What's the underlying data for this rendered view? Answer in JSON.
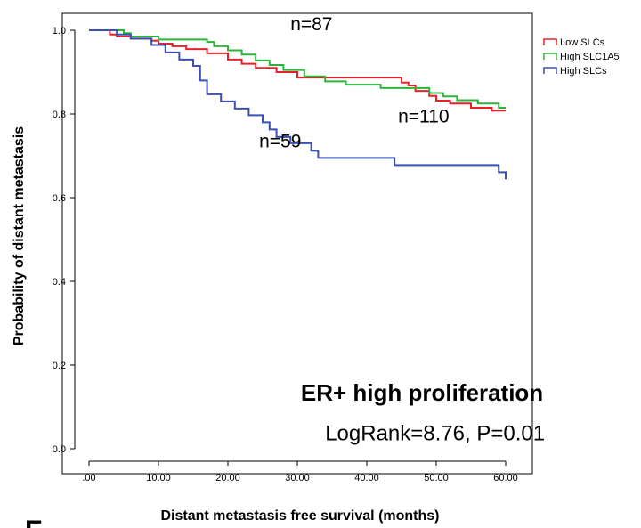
{
  "panel_label": "E",
  "chart_data": {
    "type": "line",
    "step": true,
    "title": "",
    "xlabel": "Distant metastasis free survival (months)",
    "ylabel": "Probability of distant metastasis",
    "xlim": [
      0,
      60
    ],
    "ylim": [
      0,
      1.0
    ],
    "x_ticks": [
      0,
      10,
      20,
      30,
      40,
      50,
      60
    ],
    "x_tick_labels": [
      ".00",
      "10.00",
      "20.00",
      "30.00",
      "40.00",
      "50.00",
      "60.00"
    ],
    "y_ticks": [
      0,
      0.2,
      0.4,
      0.6,
      0.8,
      1.0
    ],
    "y_tick_labels": [
      "0.0",
      "0.2",
      "0.4",
      "0.6",
      "0.8",
      "1.0"
    ],
    "grid": false,
    "legend_position": "top-right",
    "series": [
      {
        "name": "Low SLCs",
        "color": "#e8202a",
        "x": [
          0,
          3,
          4,
          6,
          9,
          10,
          12,
          14,
          17,
          20,
          22,
          24,
          27,
          30,
          35,
          45,
          46,
          47,
          49,
          50,
          52,
          55,
          58,
          60
        ],
        "y": [
          1.0,
          0.99,
          0.985,
          0.98,
          0.975,
          0.968,
          0.962,
          0.955,
          0.945,
          0.93,
          0.92,
          0.91,
          0.9,
          0.887,
          0.887,
          0.875,
          0.868,
          0.855,
          0.843,
          0.832,
          0.825,
          0.815,
          0.808,
          0.808
        ]
      },
      {
        "name": "High SLC1A5",
        "color": "#2cb53a",
        "x": [
          0,
          5,
          6,
          10,
          17,
          18,
          20,
          22,
          24,
          26,
          28,
          31,
          34,
          37,
          42,
          47,
          49,
          51,
          53,
          56,
          59,
          60
        ],
        "y": [
          1.0,
          0.993,
          0.985,
          0.978,
          0.972,
          0.962,
          0.952,
          0.942,
          0.928,
          0.917,
          0.905,
          0.89,
          0.878,
          0.87,
          0.862,
          0.862,
          0.85,
          0.842,
          0.833,
          0.825,
          0.815,
          0.815
        ]
      },
      {
        "name": "High SLCs",
        "color": "#3a50b5",
        "x": [
          0,
          4,
          6,
          9,
          11,
          13,
          15,
          16,
          17,
          19,
          21,
          23,
          25,
          26,
          27,
          29,
          32,
          33,
          44,
          59,
          60
        ],
        "y": [
          1.0,
          0.99,
          0.98,
          0.965,
          0.947,
          0.93,
          0.915,
          0.88,
          0.847,
          0.83,
          0.813,
          0.797,
          0.78,
          0.763,
          0.745,
          0.73,
          0.712,
          0.695,
          0.678,
          0.661,
          0.644
        ]
      }
    ],
    "annotations": [
      {
        "text": "n=87",
        "x": 29.0,
        "y": 1.0
      },
      {
        "text": "n=110",
        "x": 44.5,
        "y": 0.78
      },
      {
        "text": "n=59",
        "x": 24.5,
        "y": 0.72
      },
      {
        "text": "ER+ high proliferation",
        "x": 30.5,
        "y": 0.115
      },
      {
        "text": "LogRank=8.76, P=0.01",
        "x": 34.0,
        "y": 0.02
      }
    ]
  }
}
